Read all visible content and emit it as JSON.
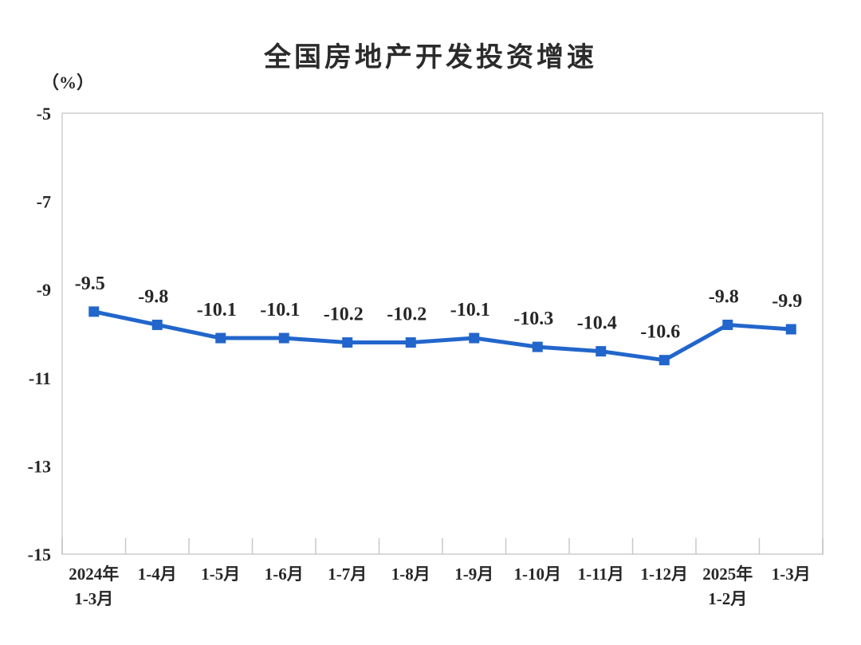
{
  "chart_data": {
    "type": "line",
    "title": "全国房地产开发投资增速",
    "unit_label": "（%）",
    "categories": [
      [
        "2024年",
        "1-3月"
      ],
      [
        "1-4月"
      ],
      [
        "1-5月"
      ],
      [
        "1-6月"
      ],
      [
        "1-7月"
      ],
      [
        "1-8月"
      ],
      [
        "1-9月"
      ],
      [
        "1-10月"
      ],
      [
        "1-11月"
      ],
      [
        "1-12月"
      ],
      [
        "2025年",
        "1-2月"
      ],
      [
        "1-3月"
      ]
    ],
    "values": [
      -9.5,
      -9.8,
      -10.1,
      -10.1,
      -10.2,
      -10.2,
      -10.1,
      -10.3,
      -10.4,
      -10.6,
      -9.8,
      -9.9
    ],
    "data_labels": [
      "-9.5",
      "-9.8",
      "-10.1",
      "-10.1",
      "-10.2",
      "-10.2",
      "-10.1",
      "-10.3",
      "-10.4",
      "-10.6",
      "-9.8",
      "-9.9"
    ],
    "ylabel": "",
    "xlabel": "",
    "ylim": [
      -15,
      -5
    ],
    "yticks": [
      -5,
      -7,
      -9,
      -11,
      -13,
      -15
    ],
    "grid": "off",
    "legend": "none",
    "marker": "square",
    "colors": {
      "line": "#2266CC",
      "plot_border": "#D9D9D9",
      "axis_tick": "#C8C8C8",
      "text": "#262626",
      "title_text": "#2B2B2B",
      "background": "#FFFFFF"
    }
  }
}
